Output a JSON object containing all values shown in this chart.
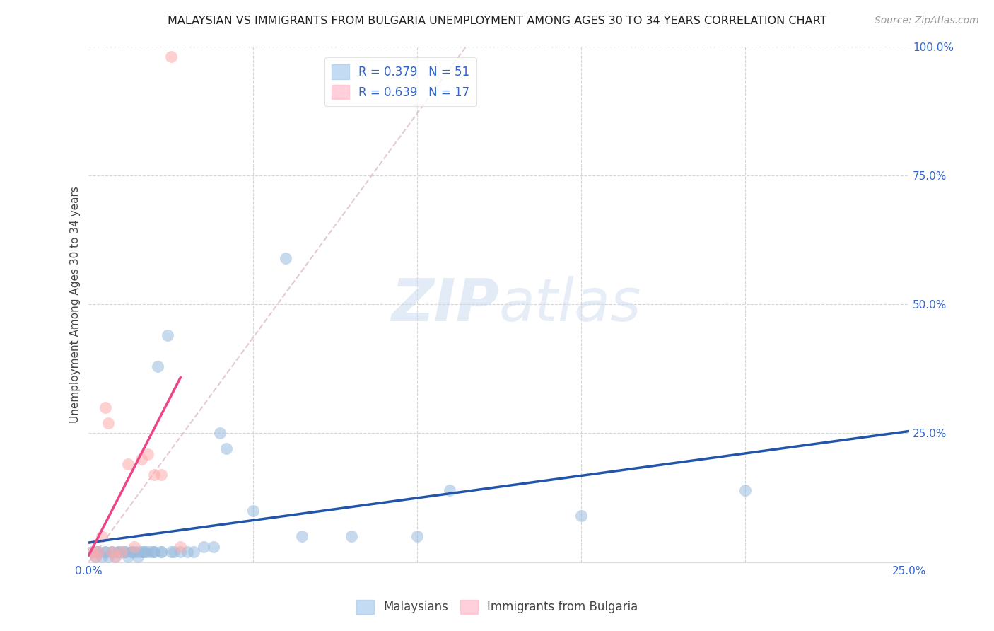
{
  "title": "MALAYSIAN VS IMMIGRANTS FROM BULGARIA UNEMPLOYMENT AMONG AGES 30 TO 34 YEARS CORRELATION CHART",
  "source": "Source: ZipAtlas.com",
  "ylabel": "Unemployment Among Ages 30 to 34 years",
  "xlim": [
    0,
    0.25
  ],
  "ylim": [
    0,
    1.0
  ],
  "xticks": [
    0.0,
    0.05,
    0.1,
    0.15,
    0.2,
    0.25
  ],
  "yticks": [
    0.0,
    0.25,
    0.5,
    0.75,
    1.0
  ],
  "xtick_labels_show": [
    "0.0%",
    "25.0%"
  ],
  "ytick_labels_show": [
    "25.0%",
    "50.0%",
    "75.0%",
    "100.0%"
  ],
  "malaysians_x": [
    0.001,
    0.002,
    0.003,
    0.004,
    0.005,
    0.006,
    0.007,
    0.008,
    0.009,
    0.01,
    0.011,
    0.012,
    0.013,
    0.014,
    0.015,
    0.016,
    0.017,
    0.018,
    0.019,
    0.02,
    0.021,
    0.022,
    0.024,
    0.025,
    0.026,
    0.028,
    0.03,
    0.032,
    0.035,
    0.038,
    0.04,
    0.042,
    0.05,
    0.06,
    0.065,
    0.08,
    0.1,
    0.11,
    0.15,
    0.2,
    0.002,
    0.003,
    0.005,
    0.007,
    0.009,
    0.011,
    0.013,
    0.015,
    0.017,
    0.02,
    0.022
  ],
  "malaysians_y": [
    0.02,
    0.01,
    0.02,
    0.01,
    0.02,
    0.01,
    0.02,
    0.01,
    0.02,
    0.02,
    0.02,
    0.01,
    0.02,
    0.02,
    0.01,
    0.02,
    0.02,
    0.02,
    0.02,
    0.02,
    0.38,
    0.02,
    0.44,
    0.02,
    0.02,
    0.02,
    0.02,
    0.02,
    0.03,
    0.03,
    0.25,
    0.22,
    0.1,
    0.59,
    0.05,
    0.05,
    0.05,
    0.14,
    0.09,
    0.14,
    0.02,
    0.02,
    0.02,
    0.02,
    0.02,
    0.02,
    0.02,
    0.02,
    0.02,
    0.02,
    0.02
  ],
  "bulgaria_x": [
    0.001,
    0.002,
    0.003,
    0.004,
    0.005,
    0.006,
    0.007,
    0.008,
    0.01,
    0.012,
    0.014,
    0.016,
    0.018,
    0.02,
    0.022,
    0.025,
    0.028
  ],
  "bulgaria_y": [
    0.02,
    0.01,
    0.02,
    0.05,
    0.3,
    0.27,
    0.02,
    0.01,
    0.02,
    0.19,
    0.03,
    0.2,
    0.21,
    0.17,
    0.17,
    0.98,
    0.03
  ],
  "r_malaysians": 0.379,
  "n_malaysians": 51,
  "r_bulgaria": 0.639,
  "n_bulgaria": 17,
  "blue_scatter_color": "#99BBDD",
  "pink_scatter_color": "#FFAAAA",
  "blue_line_color": "#2255AA",
  "pink_line_color": "#EE4488",
  "dash_line_color": "#DDBBCC",
  "legend_text_color": "#3366CC",
  "watermark_color": "#C8D8EE",
  "background_color": "#FFFFFF",
  "grid_color": "#CCCCCC"
}
